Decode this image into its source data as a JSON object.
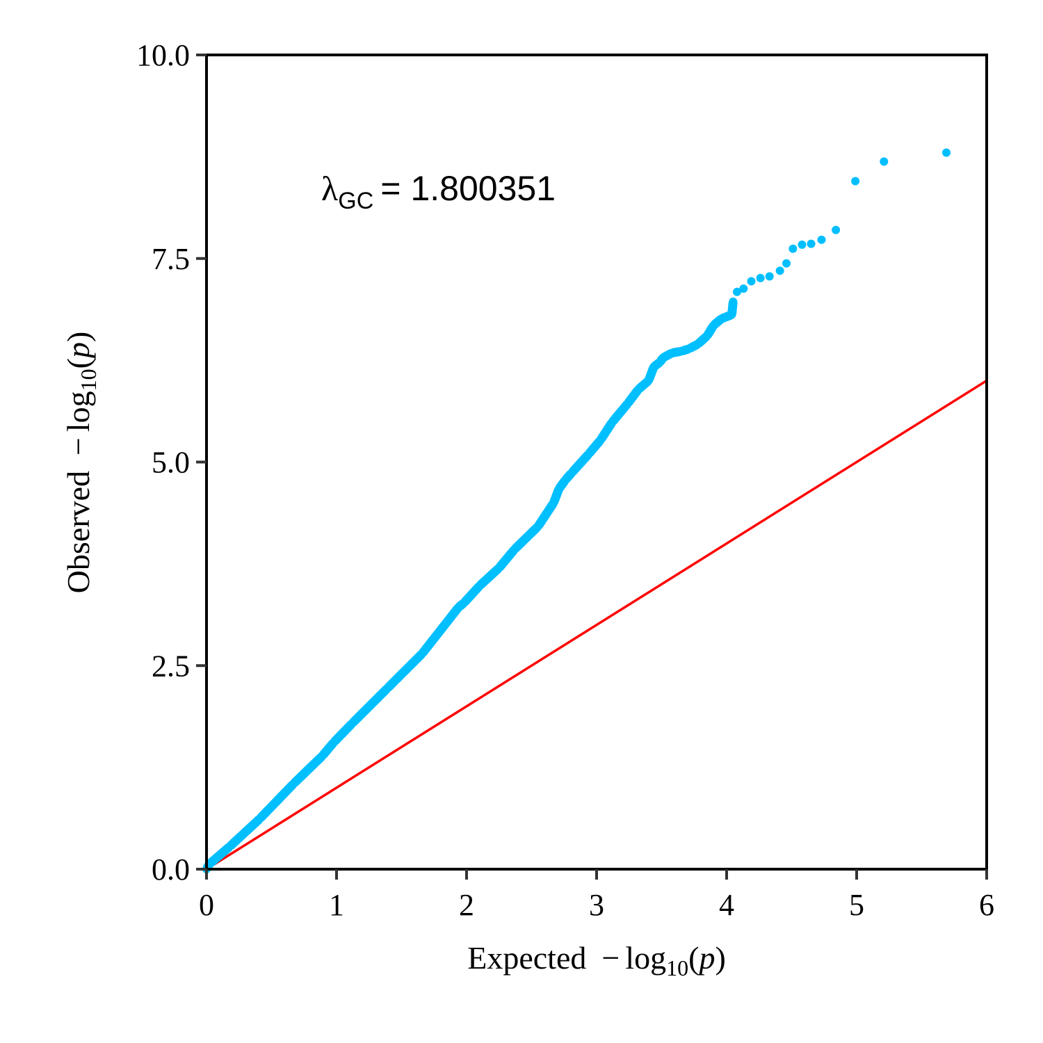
{
  "chart_data": {
    "type": "scatter",
    "title": "",
    "xlabel": {
      "prefix": "Expected",
      "minus": "−",
      "log": "log",
      "base": "10",
      "arg": "p"
    },
    "ylabel": {
      "prefix": "Observed",
      "minus": "−",
      "log": "log",
      "base": "10",
      "arg": "p"
    },
    "xlim": [
      0,
      6
    ],
    "ylim": [
      0,
      10
    ],
    "xticks": [
      0,
      1,
      2,
      3,
      4,
      5,
      6
    ],
    "xtick_labels": [
      "0",
      "1",
      "2",
      "3",
      "4",
      "5",
      "6"
    ],
    "yticks": [
      0,
      2.5,
      5,
      7.5,
      10
    ],
    "ytick_labels": [
      "0.0",
      "2.5",
      "5.0",
      "7.5",
      "10.0"
    ],
    "grid": false,
    "legend": null,
    "annotation": {
      "symbol": "λ",
      "subscript": "GC",
      "equals": "=",
      "value": "1.800351"
    },
    "reference_line": {
      "name": "y = x",
      "x": [
        0,
        6
      ],
      "y": [
        0,
        6
      ],
      "color": "#ff0000"
    },
    "series": [
      {
        "name": "observed",
        "color": "#00bfff",
        "x": [
          0.0,
          0.02,
          0.18,
          0.41,
          0.67,
          0.89,
          0.98,
          1.12,
          1.39,
          1.66,
          1.94,
          1.98,
          2.1,
          2.25,
          2.37,
          2.55,
          2.67,
          2.71,
          2.76,
          2.81,
          2.94,
          3.03,
          3.12,
          3.24,
          3.32,
          3.4,
          3.44,
          3.49,
          3.51,
          3.58,
          3.65,
          3.71,
          3.78,
          3.85,
          3.9,
          3.96,
          4.04,
          4.05,
          4.08,
          4.13,
          4.19,
          4.26,
          4.33,
          4.41,
          4.46,
          4.51,
          4.58,
          4.65,
          4.73,
          4.84,
          4.99,
          5.21,
          5.69
        ],
        "y": [
          0.0,
          0.06,
          0.28,
          0.62,
          1.05,
          1.39,
          1.56,
          1.79,
          2.22,
          2.65,
          3.22,
          3.27,
          3.48,
          3.7,
          3.93,
          4.21,
          4.5,
          4.67,
          4.78,
          4.87,
          5.1,
          5.27,
          5.49,
          5.72,
          5.89,
          6.0,
          6.17,
          6.23,
          6.28,
          6.34,
          6.36,
          6.39,
          6.45,
          6.55,
          6.68,
          6.76,
          6.81,
          6.97,
          7.09,
          7.13,
          7.22,
          7.26,
          7.28,
          7.35,
          7.44,
          7.62,
          7.67,
          7.68,
          7.73,
          7.85,
          8.45,
          8.69,
          8.8
        ]
      }
    ]
  }
}
